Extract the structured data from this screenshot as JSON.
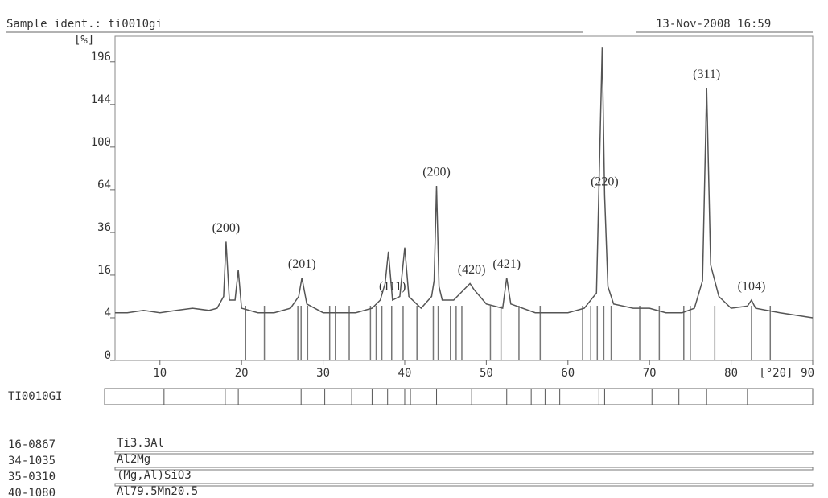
{
  "chart_data": {
    "type": "line",
    "title": "Sample ident.: ti0010gi",
    "subtitle": "13-Nov-2008 16:59",
    "y_label": "[%]",
    "x_label": "[°2θ]",
    "y_scale": "sqrt",
    "color": "#555555",
    "x": [
      4.5,
      6,
      8,
      10,
      12,
      14,
      16,
      17,
      17.8,
      18.1,
      18.5,
      19.2,
      19.6,
      20,
      22,
      24,
      26,
      27,
      27.4,
      28,
      30,
      32,
      34,
      36,
      37,
      37.6,
      38,
      38.5,
      39.4,
      40,
      40.5,
      42,
      43.3,
      43.6,
      43.9,
      44.2,
      44.6,
      46,
      48,
      48.5,
      50,
      52,
      52.5,
      53,
      56,
      60,
      62,
      63.5,
      64.2,
      64.5,
      64.9,
      65.6,
      68,
      70,
      72,
      74,
      75.5,
      76.5,
      77,
      77.5,
      78.5,
      80,
      82,
      82.5,
      83,
      86,
      90
    ],
    "values": [
      5,
      5,
      5.5,
      5,
      5.5,
      6,
      5.5,
      6,
      9,
      31,
      8,
      8,
      18,
      6,
      5,
      5,
      6,
      9,
      15,
      7,
      5,
      5,
      5,
      6,
      8,
      13,
      26,
      8,
      9,
      28,
      9,
      6,
      9,
      14,
      67,
      12,
      8,
      8,
      13,
      11,
      7,
      6,
      15,
      7,
      5,
      5,
      6,
      10,
      215,
      60,
      12,
      7,
      6,
      6,
      5,
      5,
      6,
      14,
      163,
      20,
      9,
      6,
      6.5,
      8,
      6,
      5,
      4
    ],
    "xlim": [
      4.5,
      90
    ],
    "ylim": [
      0,
      231
    ],
    "xticks": [
      10,
      20,
      30,
      40,
      50,
      60,
      70,
      80,
      90
    ],
    "yticks": [
      0,
      4,
      16,
      36,
      64,
      100,
      144,
      196
    ],
    "annotations": [
      {
        "text": "(200)",
        "x": 18.1
      },
      {
        "text": "(201)",
        "x": 27.4
      },
      {
        "text": "(111)",
        "x": 38.5
      },
      {
        "text": "(200)",
        "x": 43.9
      },
      {
        "text": "(420)",
        "x": 48.2
      },
      {
        "text": "(421)",
        "x": 52.5
      },
      {
        "text": "(220)",
        "x": 64.5
      },
      {
        "text": "(311)",
        "x": 77
      },
      {
        "text": "(104)",
        "x": 82.5
      }
    ],
    "reference_sticks": [
      20.5,
      22.8,
      26.9,
      27.3,
      28.1,
      30.8,
      31.5,
      33.2,
      35.8,
      36.5,
      37.2,
      38.4,
      39.8,
      41.5,
      43.5,
      44.1,
      45.6,
      46.3,
      47,
      50.5,
      51.8,
      54,
      56.6,
      61.8,
      62.8,
      63.6,
      64.4,
      65.3,
      68.8,
      71.2,
      74.2,
      75,
      78,
      82.5,
      84.8
    ],
    "sample_name": "TI0010GI",
    "sample_peaks": [
      10.5,
      18,
      19.6,
      27.3,
      30.2,
      33.5,
      36,
      37.9,
      40,
      40.7,
      43.9,
      48.2,
      52.5,
      55.5,
      57.2,
      59,
      63.8,
      64.5,
      70.3,
      73.6,
      77,
      82
    ],
    "phases": [
      {
        "code": "16-0867",
        "name": "Ti3.3Al"
      },
      {
        "code": "34-1035",
        "name": "Al2Mg"
      },
      {
        "code": "35-0310",
        "name": "(Mg,Al)SiO3"
      },
      {
        "code": "40-1080",
        "name": "Al79.5Mn20.5"
      }
    ]
  }
}
